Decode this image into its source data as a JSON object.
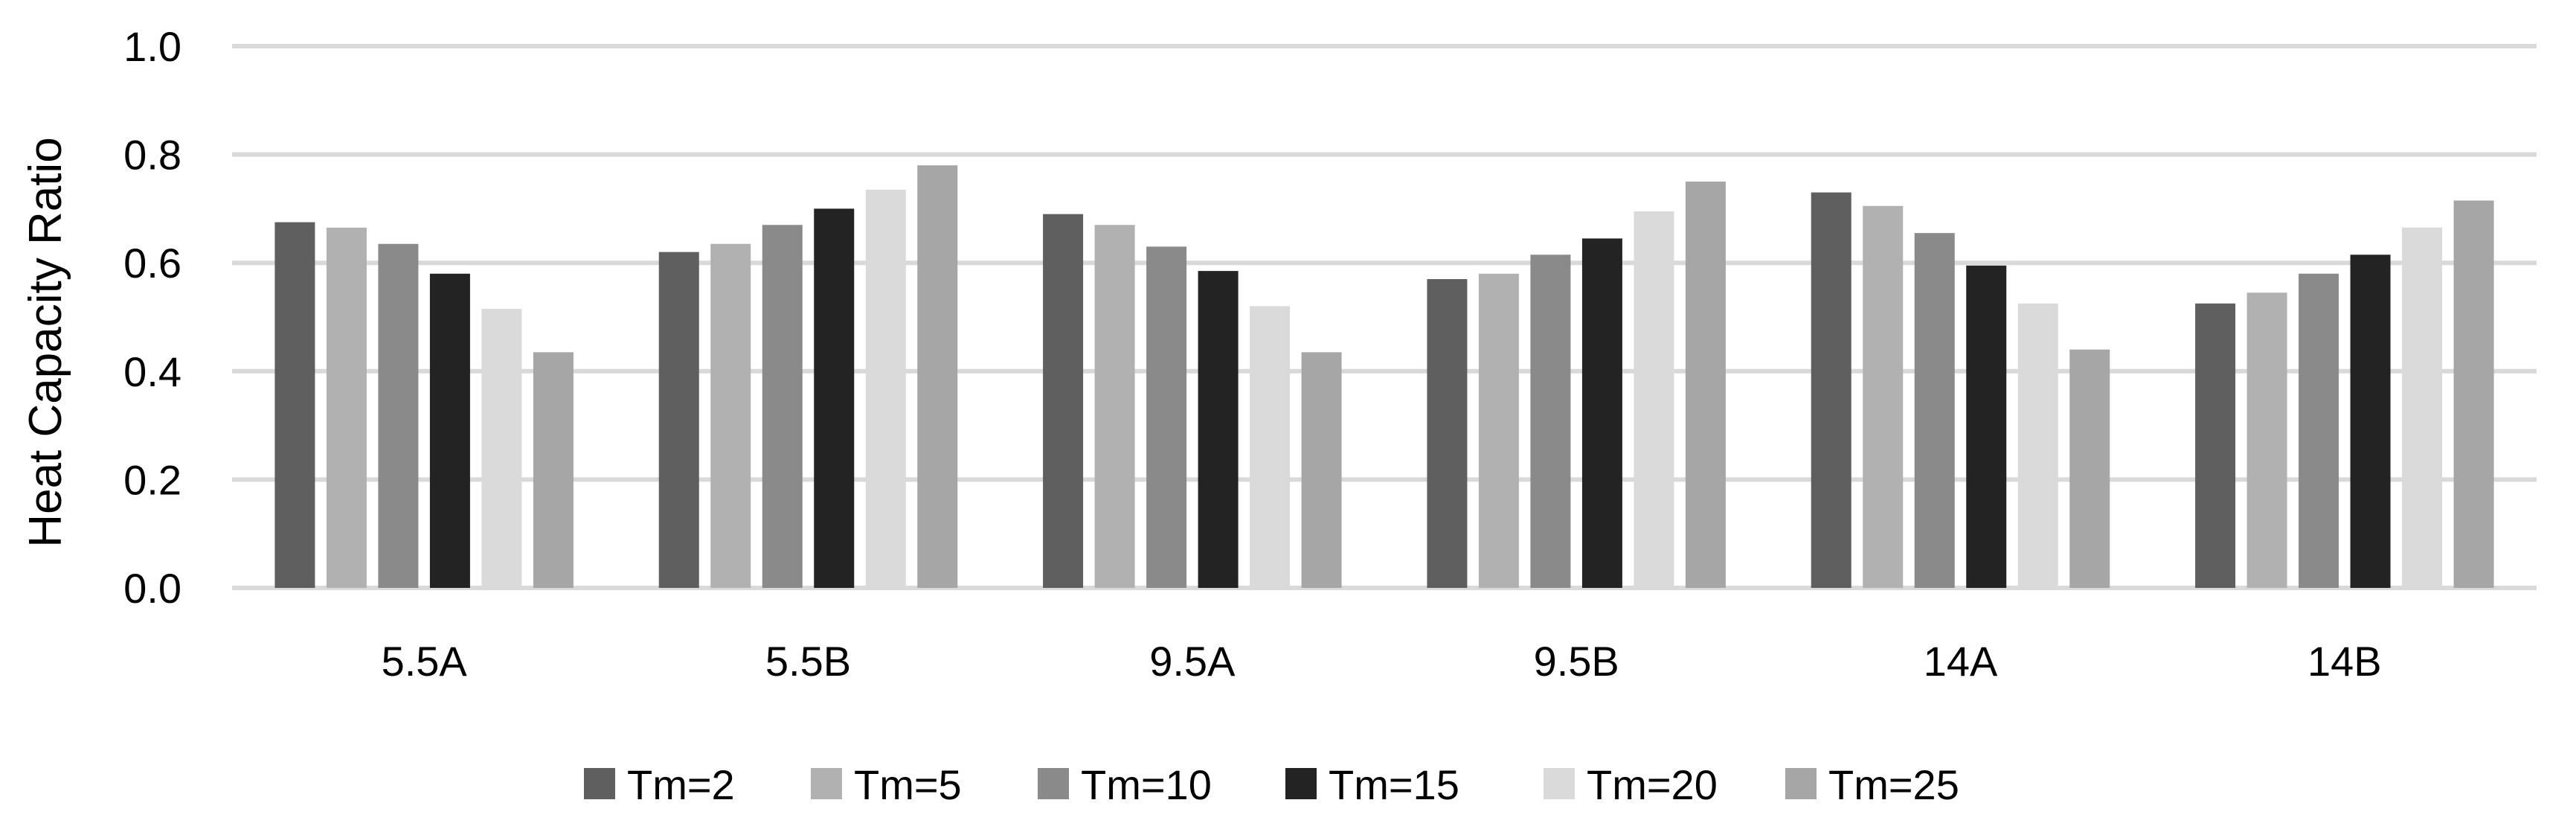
{
  "chart_data": {
    "type": "bar",
    "title": "",
    "xlabel": "",
    "ylabel": "Heat Capacity Ratio",
    "ylim": [
      0,
      1.0
    ],
    "yticks": [
      "0.0",
      "0.2",
      "0.4",
      "0.6",
      "0.8",
      "1.0"
    ],
    "grid": "horizontal",
    "legend_position": "bottom",
    "categories": [
      "5.5A",
      "5.5B",
      "9.5A",
      "9.5B",
      "14A",
      "14B"
    ],
    "series": [
      {
        "name": "Tm=2",
        "color": "#5f5f5f",
        "values": [
          0.675,
          0.62,
          0.69,
          0.57,
          0.73,
          0.525
        ]
      },
      {
        "name": "Tm=5",
        "color": "#b1b1b1",
        "values": [
          0.665,
          0.635,
          0.67,
          0.58,
          0.705,
          0.545
        ]
      },
      {
        "name": "Tm=10",
        "color": "#8a8a8a",
        "values": [
          0.635,
          0.67,
          0.63,
          0.615,
          0.655,
          0.58
        ]
      },
      {
        "name": "Tm=15",
        "color": "#232323",
        "values": [
          0.58,
          0.7,
          0.585,
          0.645,
          0.595,
          0.615
        ]
      },
      {
        "name": "Tm=20",
        "color": "#dadada",
        "values": [
          0.515,
          0.735,
          0.52,
          0.695,
          0.525,
          0.665
        ]
      },
      {
        "name": "Tm=25",
        "color": "#a6a6a6",
        "values": [
          0.435,
          0.78,
          0.435,
          0.75,
          0.44,
          0.715
        ]
      }
    ]
  }
}
